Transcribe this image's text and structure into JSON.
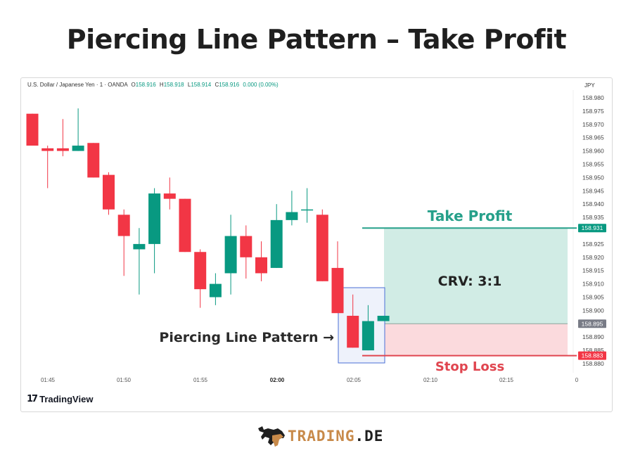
{
  "title": "Piercing Line Pattern – Take Profit",
  "header": {
    "symbol": "U.S. Dollar / Japanese Yen · 1 · OANDA",
    "open_label": "O",
    "open": "158.916",
    "high_label": "H",
    "high": "158.918",
    "low_label": "L",
    "low": "158.914",
    "close_label": "C",
    "close": "158.916",
    "change": "0.000 (0.00%)",
    "currency": "JPY"
  },
  "footer": {
    "tv_logo_mark": "17",
    "tv_logo_text": "TradingView",
    "brand_part1": "TRADING",
    "brand_part2": ".DE"
  },
  "colors": {
    "up": "#089981",
    "down": "#f23645",
    "tp_zone": "#d1ece5",
    "sl_zone": "#fbdadd",
    "tp_line": "#26a08a",
    "sl_line": "#e0454f",
    "highlight_box": "#4a6fd6",
    "highlight_fill": "#eef2fb",
    "brand_orange": "#c88a4a"
  },
  "annotations": {
    "take_profit": "Take Profit",
    "stop_loss": "Stop Loss",
    "crv": "CRV: 3:1",
    "pattern_label": "Piercing Line Pattern →"
  },
  "chart_data": {
    "type": "candlestick",
    "title": "Piercing Line Pattern – Take Profit",
    "instrument": "U.S. Dollar / Japanese Yen · 1 · OANDA",
    "ylabel": "JPY",
    "ylim": [
      158.88,
      158.98
    ],
    "y_ticks": [
      "158.980",
      "158.975",
      "158.970",
      "158.965",
      "158.960",
      "158.955",
      "158.950",
      "158.945",
      "158.940",
      "158.935",
      "158.930",
      "158.925",
      "158.920",
      "158.915",
      "158.910",
      "158.905",
      "158.900",
      "158.895",
      "158.890",
      "158.885",
      "158.880"
    ],
    "x_ticks": [
      "01:45",
      "01:50",
      "01:55",
      "02:00",
      "02:05",
      "02:10",
      "02:15",
      "0"
    ],
    "price_labels": [
      {
        "value": "158.931",
        "role": "take_profit",
        "color": "#089981"
      },
      {
        "value": "158.895",
        "role": "entry",
        "color": "#787b86"
      },
      {
        "value": "158.883",
        "role": "stop_loss",
        "color": "#f23645"
      }
    ],
    "candles": [
      {
        "o": 158.974,
        "h": 158.974,
        "l": 158.962,
        "c": 158.962
      },
      {
        "o": 158.961,
        "h": 158.962,
        "l": 158.946,
        "c": 158.96
      },
      {
        "o": 158.961,
        "h": 158.972,
        "l": 158.958,
        "c": 158.96
      },
      {
        "o": 158.96,
        "h": 158.976,
        "l": 158.96,
        "c": 158.962
      },
      {
        "o": 158.963,
        "h": 158.963,
        "l": 158.95,
        "c": 158.95
      },
      {
        "o": 158.951,
        "h": 158.952,
        "l": 158.936,
        "c": 158.938
      },
      {
        "o": 158.936,
        "h": 158.938,
        "l": 158.913,
        "c": 158.928
      },
      {
        "o": 158.923,
        "h": 158.931,
        "l": 158.906,
        "c": 158.925
      },
      {
        "o": 158.925,
        "h": 158.946,
        "l": 158.914,
        "c": 158.944
      },
      {
        "o": 158.944,
        "h": 158.95,
        "l": 158.938,
        "c": 158.942
      },
      {
        "o": 158.942,
        "h": 158.942,
        "l": 158.922,
        "c": 158.922
      },
      {
        "o": 158.922,
        "h": 158.923,
        "l": 158.901,
        "c": 158.908
      },
      {
        "o": 158.905,
        "h": 158.914,
        "l": 158.902,
        "c": 158.91
      },
      {
        "o": 158.914,
        "h": 158.936,
        "l": 158.906,
        "c": 158.928
      },
      {
        "o": 158.928,
        "h": 158.932,
        "l": 158.912,
        "c": 158.92
      },
      {
        "o": 158.92,
        "h": 158.926,
        "l": 158.911,
        "c": 158.914
      },
      {
        "o": 158.916,
        "h": 158.94,
        "l": 158.916,
        "c": 158.934
      },
      {
        "o": 158.934,
        "h": 158.945,
        "l": 158.932,
        "c": 158.937
      },
      {
        "o": 158.938,
        "h": 158.946,
        "l": 158.933,
        "c": 158.938
      },
      {
        "o": 158.936,
        "h": 158.938,
        "l": 158.911,
        "c": 158.911
      },
      {
        "o": 158.916,
        "h": 158.926,
        "l": 158.899,
        "c": 158.899
      },
      {
        "o": 158.898,
        "h": 158.906,
        "l": 158.886,
        "c": 158.886
      },
      {
        "o": 158.885,
        "h": 158.902,
        "l": 158.885,
        "c": 158.896
      },
      {
        "o": 158.896,
        "h": 158.898,
        "l": 158.896,
        "c": 158.898
      }
    ],
    "take_profit": 158.931,
    "entry": 158.895,
    "stop_loss": 158.883,
    "risk_reward": "3:1",
    "grid": false
  }
}
